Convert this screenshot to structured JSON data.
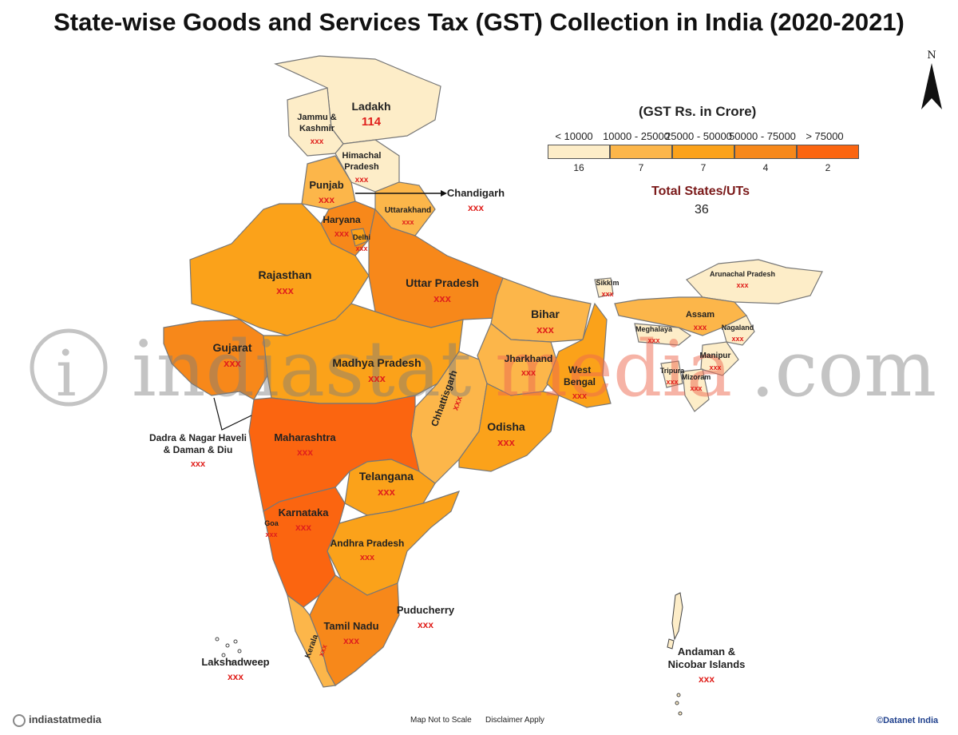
{
  "title": "State-wise Goods and Services Tax (GST) Collection in India (2020-2021)",
  "legend": {
    "title": "(GST Rs. in Crore)",
    "ranges": [
      {
        "label": "< 10000",
        "count": "16",
        "color": "#fdedc8"
      },
      {
        "label": "10000 - 25000",
        "count": "7",
        "color": "#fcb64a"
      },
      {
        "label": "25000 - 50000",
        "count": "7",
        "color": "#fba21a"
      },
      {
        "label": "50000 - 75000",
        "count": "4",
        "color": "#f7881a"
      },
      {
        "label": "> 75000",
        "count": "2",
        "color": "#fb6510"
      }
    ]
  },
  "total": {
    "label": "Total States/UTs",
    "value": "36"
  },
  "north_label": "N",
  "regions": [
    {
      "name": "Ladakh",
      "value": "114",
      "band": 0
    },
    {
      "name": "Jammu & Kashmir",
      "value": "xxx",
      "band": 0
    },
    {
      "name": "Himachal Pradesh",
      "value": "xxx",
      "band": 0
    },
    {
      "name": "Punjab",
      "value": "xxx",
      "band": 1
    },
    {
      "name": "Chandigarh",
      "value": "xxx",
      "band": 0
    },
    {
      "name": "Uttarakhand",
      "value": "xxx",
      "band": 1
    },
    {
      "name": "Haryana",
      "value": "xxx",
      "band": 3
    },
    {
      "name": "Delhi",
      "value": "xxx",
      "band": 2
    },
    {
      "name": "Rajasthan",
      "value": "xxx",
      "band": 2
    },
    {
      "name": "Uttar Pradesh",
      "value": "xxx",
      "band": 3
    },
    {
      "name": "Gujarat",
      "value": "xxx",
      "band": 3
    },
    {
      "name": "Madhya Pradesh",
      "value": "xxx",
      "band": 2
    },
    {
      "name": "Bihar",
      "value": "xxx",
      "band": 1
    },
    {
      "name": "Sikkim",
      "value": "xxx",
      "band": 0
    },
    {
      "name": "Arunachal Pradesh",
      "value": "xxx",
      "band": 0
    },
    {
      "name": "Assam",
      "value": "xxx",
      "band": 1
    },
    {
      "name": "Meghalaya",
      "value": "xxx",
      "band": 0
    },
    {
      "name": "Nagaland",
      "value": "xxx",
      "band": 0
    },
    {
      "name": "Manipur",
      "value": "xxx",
      "band": 0
    },
    {
      "name": "Tripura",
      "value": "xxx",
      "band": 0
    },
    {
      "name": "Mizoram",
      "value": "xxx",
      "band": 0
    },
    {
      "name": "Jharkhand",
      "value": "xxx",
      "band": 1
    },
    {
      "name": "West Bengal",
      "value": "xxx",
      "band": 2
    },
    {
      "name": "Chhattisgarh",
      "value": "xxx",
      "band": 1
    },
    {
      "name": "Odisha",
      "value": "xxx",
      "band": 2
    },
    {
      "name": "Dadra & Nagar Haveli & Daman & Diu",
      "value": "xxx",
      "band": 0
    },
    {
      "name": "Maharashtra",
      "value": "xxx",
      "band": 4
    },
    {
      "name": "Telangana",
      "value": "xxx",
      "band": 2
    },
    {
      "name": "Goa",
      "value": "xxx",
      "band": 0
    },
    {
      "name": "Karnataka",
      "value": "xxx",
      "band": 4
    },
    {
      "name": "Andhra Pradesh",
      "value": "xxx",
      "band": 2
    },
    {
      "name": "Puducherry",
      "value": "xxx",
      "band": 0
    },
    {
      "name": "Tamil Nadu",
      "value": "xxx",
      "band": 3
    },
    {
      "name": "Kerala",
      "value": "xxx",
      "band": 1
    },
    {
      "name": "Lakshadweep",
      "value": "xxx",
      "band": 0
    },
    {
      "name": "Andaman & Nicobar Islands",
      "value": "xxx",
      "band": 0
    }
  ],
  "watermark": {
    "part1": "indiastat",
    "part2": "media",
    "part3": ".com"
  },
  "footer": {
    "brand": "indiastatmedia",
    "scale_note": "Map Not to Scale",
    "disclaimer": "Disclaimer Apply",
    "credit": "©Datanet India"
  }
}
